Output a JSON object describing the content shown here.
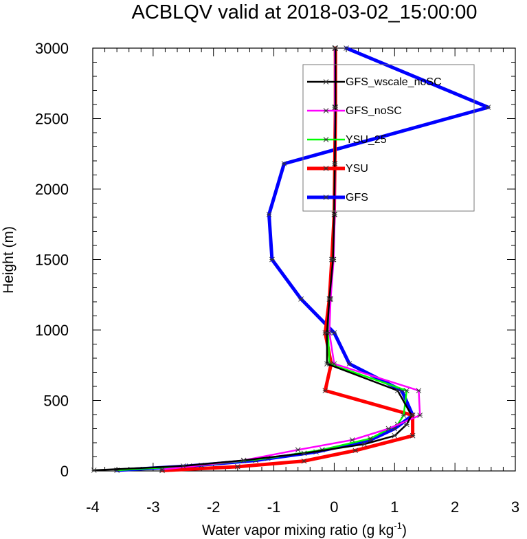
{
  "chart_data": {
    "type": "line",
    "title": "ACBLQV valid at 2018-03-02_15:00:00",
    "xlabel": "Water vapor mixing ratio (g kg",
    "xlabel_sup": "-1",
    "xlabel_end": ")",
    "ylabel": "Height (m)",
    "xlim": [
      -4,
      3
    ],
    "ylim": [
      0,
      3000
    ],
    "xticks": [
      -4,
      -3,
      -2,
      -1,
      0,
      1,
      2,
      3
    ],
    "xtick_labels": [
      "-4",
      "-3",
      "-2",
      "-1",
      "0",
      "1",
      "2",
      "3"
    ],
    "yticks": [
      0,
      500,
      1000,
      1500,
      2000,
      2500,
      3000
    ],
    "ytick_labels": [
      "0",
      "500",
      "1000",
      "1500",
      "2000",
      "2500",
      "3000"
    ],
    "grid": false,
    "legend_position": "top-right",
    "series": [
      {
        "name": "GFS_wscale_noSC",
        "color": "#000000",
        "linewidth": 2.5,
        "points": [
          [
            -3.98,
            5
          ],
          [
            -2.5,
            35
          ],
          [
            -1.5,
            75
          ],
          [
            -0.5,
            125
          ],
          [
            0.5,
            190
          ],
          [
            1.0,
            250
          ],
          [
            1.2,
            330
          ],
          [
            1.28,
            395
          ],
          [
            1.05,
            570
          ],
          [
            -0.12,
            760
          ],
          [
            -0.12,
            980
          ],
          [
            -0.08,
            1220
          ],
          [
            -0.02,
            1500
          ],
          [
            0.0,
            1820
          ],
          [
            0.01,
            2180
          ],
          [
            0.02,
            2580
          ],
          [
            0.02,
            3000
          ]
        ]
      },
      {
        "name": "GFS_noSC",
        "color": "#ff00ff",
        "linewidth": 2.5,
        "points": [
          [
            -2.85,
            10
          ],
          [
            -1.5,
            75
          ],
          [
            -0.6,
            150
          ],
          [
            0.3,
            220
          ],
          [
            0.9,
            300
          ],
          [
            1.42,
            395
          ],
          [
            1.4,
            570
          ],
          [
            0.0,
            760
          ],
          [
            -0.08,
            980
          ],
          [
            -0.06,
            1220
          ],
          [
            -0.01,
            1500
          ],
          [
            0.01,
            1820
          ],
          [
            0.01,
            2180
          ],
          [
            0.01,
            2580
          ],
          [
            0.01,
            3000
          ]
        ]
      },
      {
        "name": "YSU_25",
        "color": "#00ff00",
        "linewidth": 2.5,
        "points": [
          [
            -3.6,
            5
          ],
          [
            -2.2,
            40
          ],
          [
            -1.1,
            90
          ],
          [
            -0.2,
            150
          ],
          [
            0.6,
            230
          ],
          [
            1.05,
            330
          ],
          [
            1.15,
            395
          ],
          [
            1.2,
            570
          ],
          [
            -0.08,
            760
          ],
          [
            -0.1,
            980
          ],
          [
            -0.07,
            1220
          ],
          [
            -0.02,
            1500
          ],
          [
            0.0,
            1820
          ],
          [
            0.01,
            2180
          ],
          [
            0.01,
            2580
          ],
          [
            0.01,
            3000
          ]
        ]
      },
      {
        "name": "YSU",
        "color": "#ff0000",
        "linewidth": 5,
        "points": [
          [
            -2.85,
            3
          ],
          [
            -1.6,
            30
          ],
          [
            -0.5,
            70
          ],
          [
            0.35,
            145
          ],
          [
            1.3,
            250
          ],
          [
            1.3,
            395
          ],
          [
            -0.15,
            570
          ],
          [
            -0.05,
            760
          ],
          [
            -0.15,
            980
          ],
          [
            -0.08,
            1220
          ],
          [
            -0.04,
            1500
          ],
          [
            0.0,
            1820
          ],
          [
            0.01,
            2180
          ],
          [
            0.02,
            2580
          ],
          [
            0.02,
            3000
          ]
        ]
      },
      {
        "name": "GFS",
        "color": "#0000ff",
        "linewidth": 5,
        "points": [
          [
            -3.6,
            5
          ],
          [
            -2.4,
            35
          ],
          [
            -1.3,
            75
          ],
          [
            -0.3,
            135
          ],
          [
            0.6,
            220
          ],
          [
            1.0,
            300
          ],
          [
            1.3,
            395
          ],
          [
            1.12,
            570
          ],
          [
            0.25,
            760
          ],
          [
            0.0,
            980
          ],
          [
            -0.55,
            1220
          ],
          [
            -1.03,
            1500
          ],
          [
            -1.08,
            1820
          ],
          [
            -0.83,
            2180
          ],
          [
            2.55,
            2580
          ],
          [
            0.2,
            3000
          ]
        ]
      }
    ]
  }
}
